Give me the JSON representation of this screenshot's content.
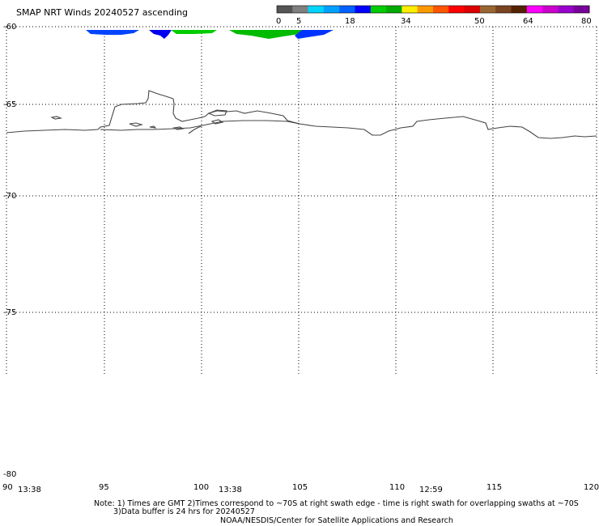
{
  "title": "SMAP NRT Winds 20240527 ascending",
  "colorbar": {
    "tick_labels": [
      "0",
      "5",
      "18",
      "34",
      "50",
      "64",
      "80"
    ],
    "tick_values": [
      0,
      5,
      18,
      34,
      50,
      64,
      80
    ],
    "colors": [
      "#555555",
      "#7f7f7f",
      "#00d4ff",
      "#00a0ff",
      "#0060ff",
      "#0000ff",
      "#00cc00",
      "#00aa00",
      "#ffee00",
      "#ff9900",
      "#ff5500",
      "#ff0000",
      "#dd0000",
      "#996633",
      "#7a4420",
      "#552200",
      "#ff00ff",
      "#cc00cc",
      "#9900cc",
      "#770099"
    ]
  },
  "axes": {
    "lat_labels": [
      "-60",
      "-65",
      "-70",
      "-75",
      "-80"
    ],
    "lon_labels": [
      "90",
      "95",
      "100",
      "105",
      "110",
      "115",
      "120"
    ]
  },
  "swath_times": [
    "13:38",
    "13:38",
    "12:59"
  ],
  "notes": {
    "line1": "Note: 1) Times are GMT 2)Times correspond to ~70S at right swath edge - time is right swath for overlapping swaths at ~70S",
    "line2": "3)Data buffer is 24 hrs for 20240527",
    "line3": "NOAA/NESDIS/Center for Satellite Applications and Research"
  }
}
